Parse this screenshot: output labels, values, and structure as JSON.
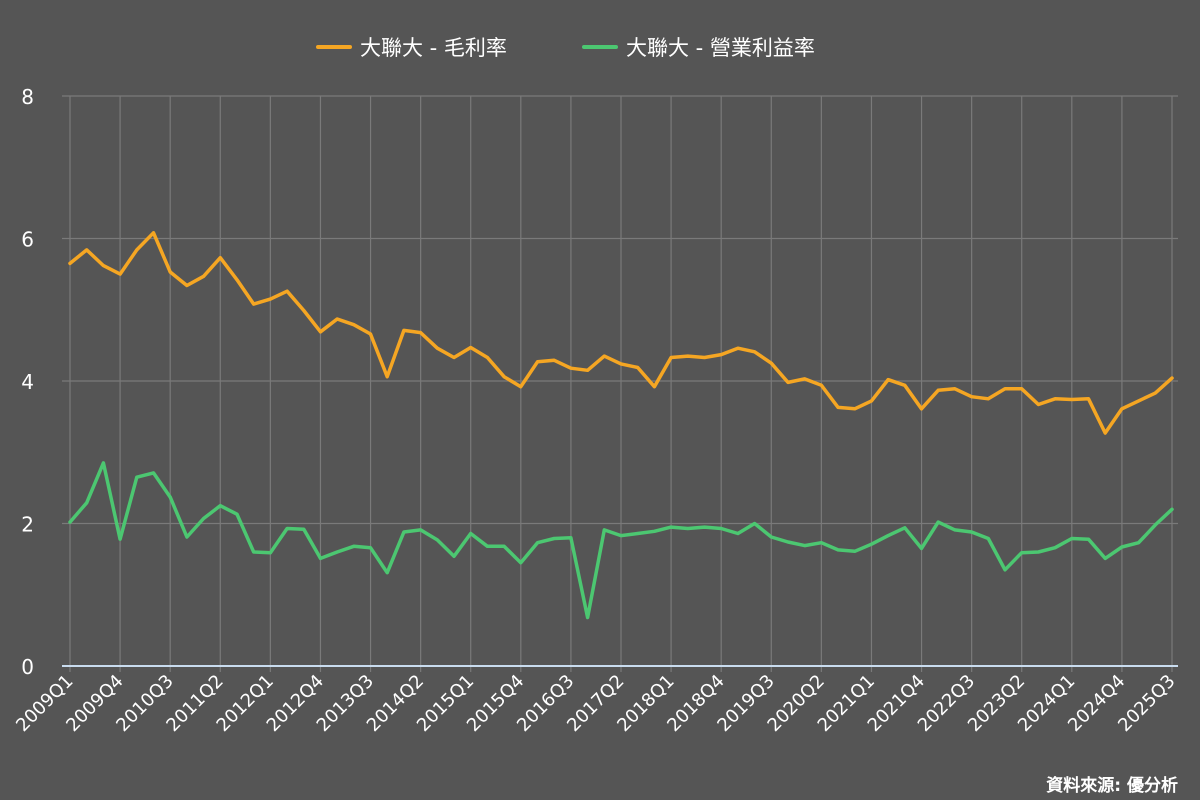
{
  "colors": {
    "background": "#555555",
    "gridline": "#7a7a7a",
    "axis": "#c9dcef",
    "text": "#ffffff",
    "gross_margin": "#f5a623",
    "operating_margin": "#4cc771"
  },
  "source_text": "資料來源: 優分析",
  "chart_data": {
    "type": "line",
    "title": "",
    "xlabel": "",
    "ylabel": "",
    "ylim": [
      0,
      8
    ],
    "yticks": [
      0,
      2,
      4,
      6,
      8
    ],
    "grid": true,
    "legend_position": "top-center",
    "x": [
      "2009Q1",
      "2009Q2",
      "2009Q3",
      "2009Q4",
      "2010Q1",
      "2010Q2",
      "2010Q3",
      "2010Q4",
      "2011Q1",
      "2011Q2",
      "2011Q3",
      "2011Q4",
      "2012Q1",
      "2012Q2",
      "2012Q3",
      "2012Q4",
      "2013Q1",
      "2013Q2",
      "2013Q3",
      "2013Q4",
      "2014Q1",
      "2014Q2",
      "2014Q3",
      "2014Q4",
      "2015Q1",
      "2015Q2",
      "2015Q3",
      "2015Q4",
      "2016Q1",
      "2016Q2",
      "2016Q3",
      "2016Q4",
      "2017Q1",
      "2017Q2",
      "2017Q3",
      "2017Q4",
      "2018Q1",
      "2018Q2",
      "2018Q3",
      "2018Q4",
      "2019Q1",
      "2019Q2",
      "2019Q3",
      "2019Q4",
      "2020Q1",
      "2020Q2",
      "2020Q3",
      "2020Q4",
      "2021Q1",
      "2021Q2",
      "2021Q3",
      "2021Q4",
      "2022Q1",
      "2022Q2",
      "2022Q3",
      "2022Q4",
      "2023Q1",
      "2023Q2",
      "2023Q3",
      "2023Q4",
      "2024Q1",
      "2024Q2",
      "2024Q3",
      "2024Q4",
      "2025Q1",
      "2025Q2",
      "2025Q3"
    ],
    "tick_labels": [
      "2009Q1",
      "2009Q4",
      "2010Q3",
      "2011Q2",
      "2012Q1",
      "2012Q4",
      "2013Q3",
      "2014Q2",
      "2015Q1",
      "2015Q4",
      "2016Q3",
      "2017Q2",
      "2018Q1",
      "2018Q4",
      "2019Q3",
      "2020Q2",
      "2021Q1",
      "2021Q4",
      "2022Q3",
      "2023Q2",
      "2024Q1",
      "2024Q4",
      "2025Q3"
    ],
    "series": [
      {
        "name": "大聯大 - 毛利率",
        "color": "#f5a623",
        "values": [
          5.65,
          5.84,
          5.62,
          5.5,
          5.84,
          6.08,
          5.53,
          5.34,
          5.47,
          5.73,
          5.42,
          5.08,
          5.15,
          5.26,
          4.99,
          4.69,
          4.87,
          4.79,
          4.66,
          4.06,
          4.71,
          4.68,
          4.46,
          4.33,
          4.47,
          4.33,
          4.06,
          3.92,
          4.27,
          4.29,
          4.18,
          4.15,
          4.35,
          4.24,
          4.19,
          3.92,
          4.33,
          4.35,
          4.33,
          4.37,
          4.46,
          4.41,
          4.25,
          3.98,
          4.03,
          3.94,
          3.63,
          3.61,
          3.72,
          4.02,
          3.94,
          3.61,
          3.87,
          3.89,
          3.78,
          3.75,
          3.89,
          3.89,
          3.67,
          3.75,
          3.74,
          3.75,
          3.27,
          3.61,
          3.72,
          3.83,
          4.04
        ]
      },
      {
        "name": "大聯大 - 營業利益率",
        "color": "#4cc771",
        "values": [
          2.02,
          2.29,
          2.85,
          1.78,
          2.65,
          2.71,
          2.37,
          1.81,
          2.07,
          2.25,
          2.13,
          1.6,
          1.59,
          1.93,
          1.92,
          1.51,
          1.6,
          1.68,
          1.66,
          1.31,
          1.88,
          1.91,
          1.77,
          1.54,
          1.86,
          1.68,
          1.68,
          1.45,
          1.73,
          1.79,
          1.8,
          0.68,
          1.91,
          1.83,
          1.86,
          1.89,
          1.95,
          1.93,
          1.95,
          1.93,
          1.86,
          2.0,
          1.81,
          1.74,
          1.69,
          1.73,
          1.63,
          1.61,
          1.71,
          1.83,
          1.94,
          1.65,
          2.02,
          1.91,
          1.88,
          1.79,
          1.35,
          1.59,
          1.6,
          1.66,
          1.79,
          1.78,
          1.51,
          1.67,
          1.73,
          1.98,
          2.2
        ]
      }
    ]
  }
}
